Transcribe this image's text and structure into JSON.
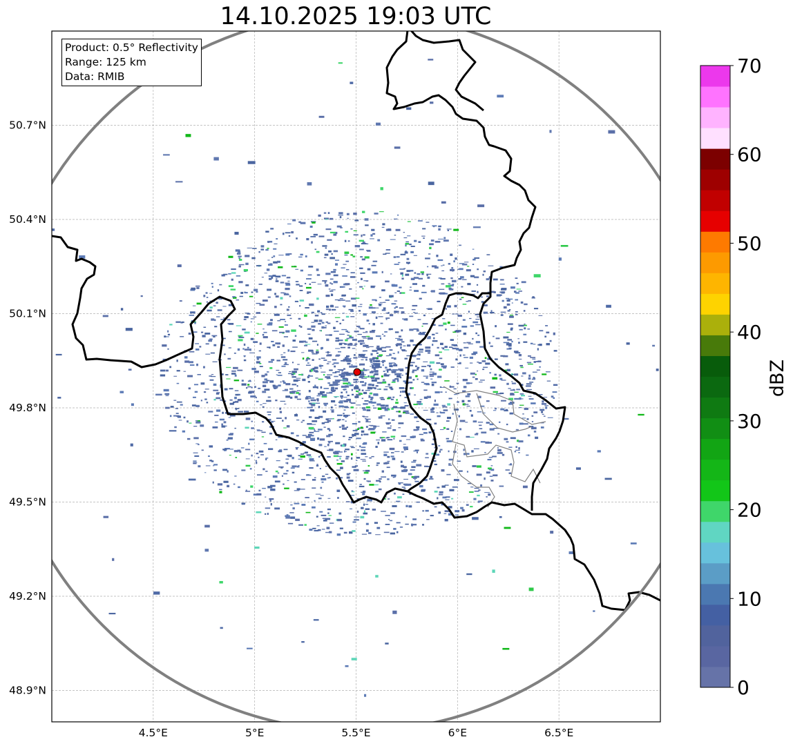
{
  "title": "14.10.2025 19:03 UTC",
  "info": {
    "product": "Product: 0.5° Reflectivity",
    "range": "Range: 125 km",
    "data": "Data: RMIB"
  },
  "map": {
    "lon_range": [
      4.0,
      7.0
    ],
    "lat_range": [
      48.8,
      51.0
    ],
    "lon_ticks": [
      {
        "value": 4.5,
        "label": "4.5°E"
      },
      {
        "value": 5.0,
        "label": "5°E"
      },
      {
        "value": 5.5,
        "label": "5.5°E"
      },
      {
        "value": 6.0,
        "label": "6°E"
      },
      {
        "value": 6.5,
        "label": "6.5°E"
      }
    ],
    "lat_ticks": [
      {
        "value": 50.7,
        "label": "50.7°N"
      },
      {
        "value": 50.4,
        "label": "50.4°N"
      },
      {
        "value": 50.1,
        "label": "50.1°N"
      },
      {
        "value": 49.8,
        "label": "49.8°N"
      },
      {
        "value": 49.5,
        "label": "49.5°N"
      },
      {
        "value": 49.2,
        "label": "49.2°N"
      },
      {
        "value": 48.9,
        "label": "48.9°N"
      }
    ],
    "radar_site": {
      "lon": 5.505,
      "lat": 49.914
    },
    "grid": true,
    "range_ring_color": "#808080",
    "border_color": "#000000",
    "admin_border_color": "#808080",
    "site_marker_color": "#e00000"
  },
  "colorbar": {
    "label": "dBZ",
    "min": 0,
    "max": 70,
    "ticks": [
      {
        "value": 0,
        "label": "0"
      },
      {
        "value": 10,
        "label": "10"
      },
      {
        "value": 20,
        "label": "20"
      },
      {
        "value": 30,
        "label": "30"
      },
      {
        "value": 40,
        "label": "40"
      },
      {
        "value": 50,
        "label": "50"
      },
      {
        "value": 60,
        "label": "60"
      },
      {
        "value": 70,
        "label": "70"
      }
    ],
    "colors": [
      "#6673a8",
      "#5966a1",
      "#51639d",
      "#4460a3",
      "#4b78b1",
      "#5b9dc6",
      "#67c1dc",
      "#60d6c2",
      "#3fd66a",
      "#12c618",
      "#14b617",
      "#12a514",
      "#118e14",
      "#0f7a12",
      "#0b6910",
      "#085c0b",
      "#487a0a",
      "#abb00b",
      "#fed300",
      "#feb500",
      "#fd9a00",
      "#fe7a00",
      "#e60000",
      "#c10000",
      "#9e0000",
      "#7c0000",
      "#ffe0ff",
      "#ffb3ff",
      "#ff73ff",
      "#ec38ec"
    ]
  }
}
